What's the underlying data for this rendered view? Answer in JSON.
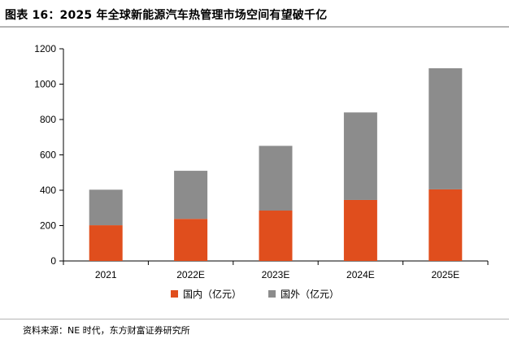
{
  "page": {
    "title": "图表 16：2025 年全球新能源汽车热管理市场空间有望破千亿",
    "source": "资料来源：NE 时代，东方财富证券研究所"
  },
  "chart_data": {
    "type": "bar",
    "stacked": true,
    "categories": [
      "2021",
      "2022E",
      "2023E",
      "2024E",
      "2025E"
    ],
    "series": [
      {
        "name": "国内（亿元）",
        "color": "#e04e1d",
        "values": [
          202,
          238,
          285,
          345,
          405
        ]
      },
      {
        "name": "国外（亿元）",
        "color": "#8c8c8c",
        "values": [
          201,
          272,
          366,
          495,
          685
        ]
      }
    ],
    "ylim": [
      0,
      1200
    ],
    "yticks": [
      0,
      200,
      400,
      600,
      800,
      1000,
      1200
    ],
    "grid": false,
    "legend_position": "bottom",
    "xlabel": "",
    "ylabel": ""
  }
}
